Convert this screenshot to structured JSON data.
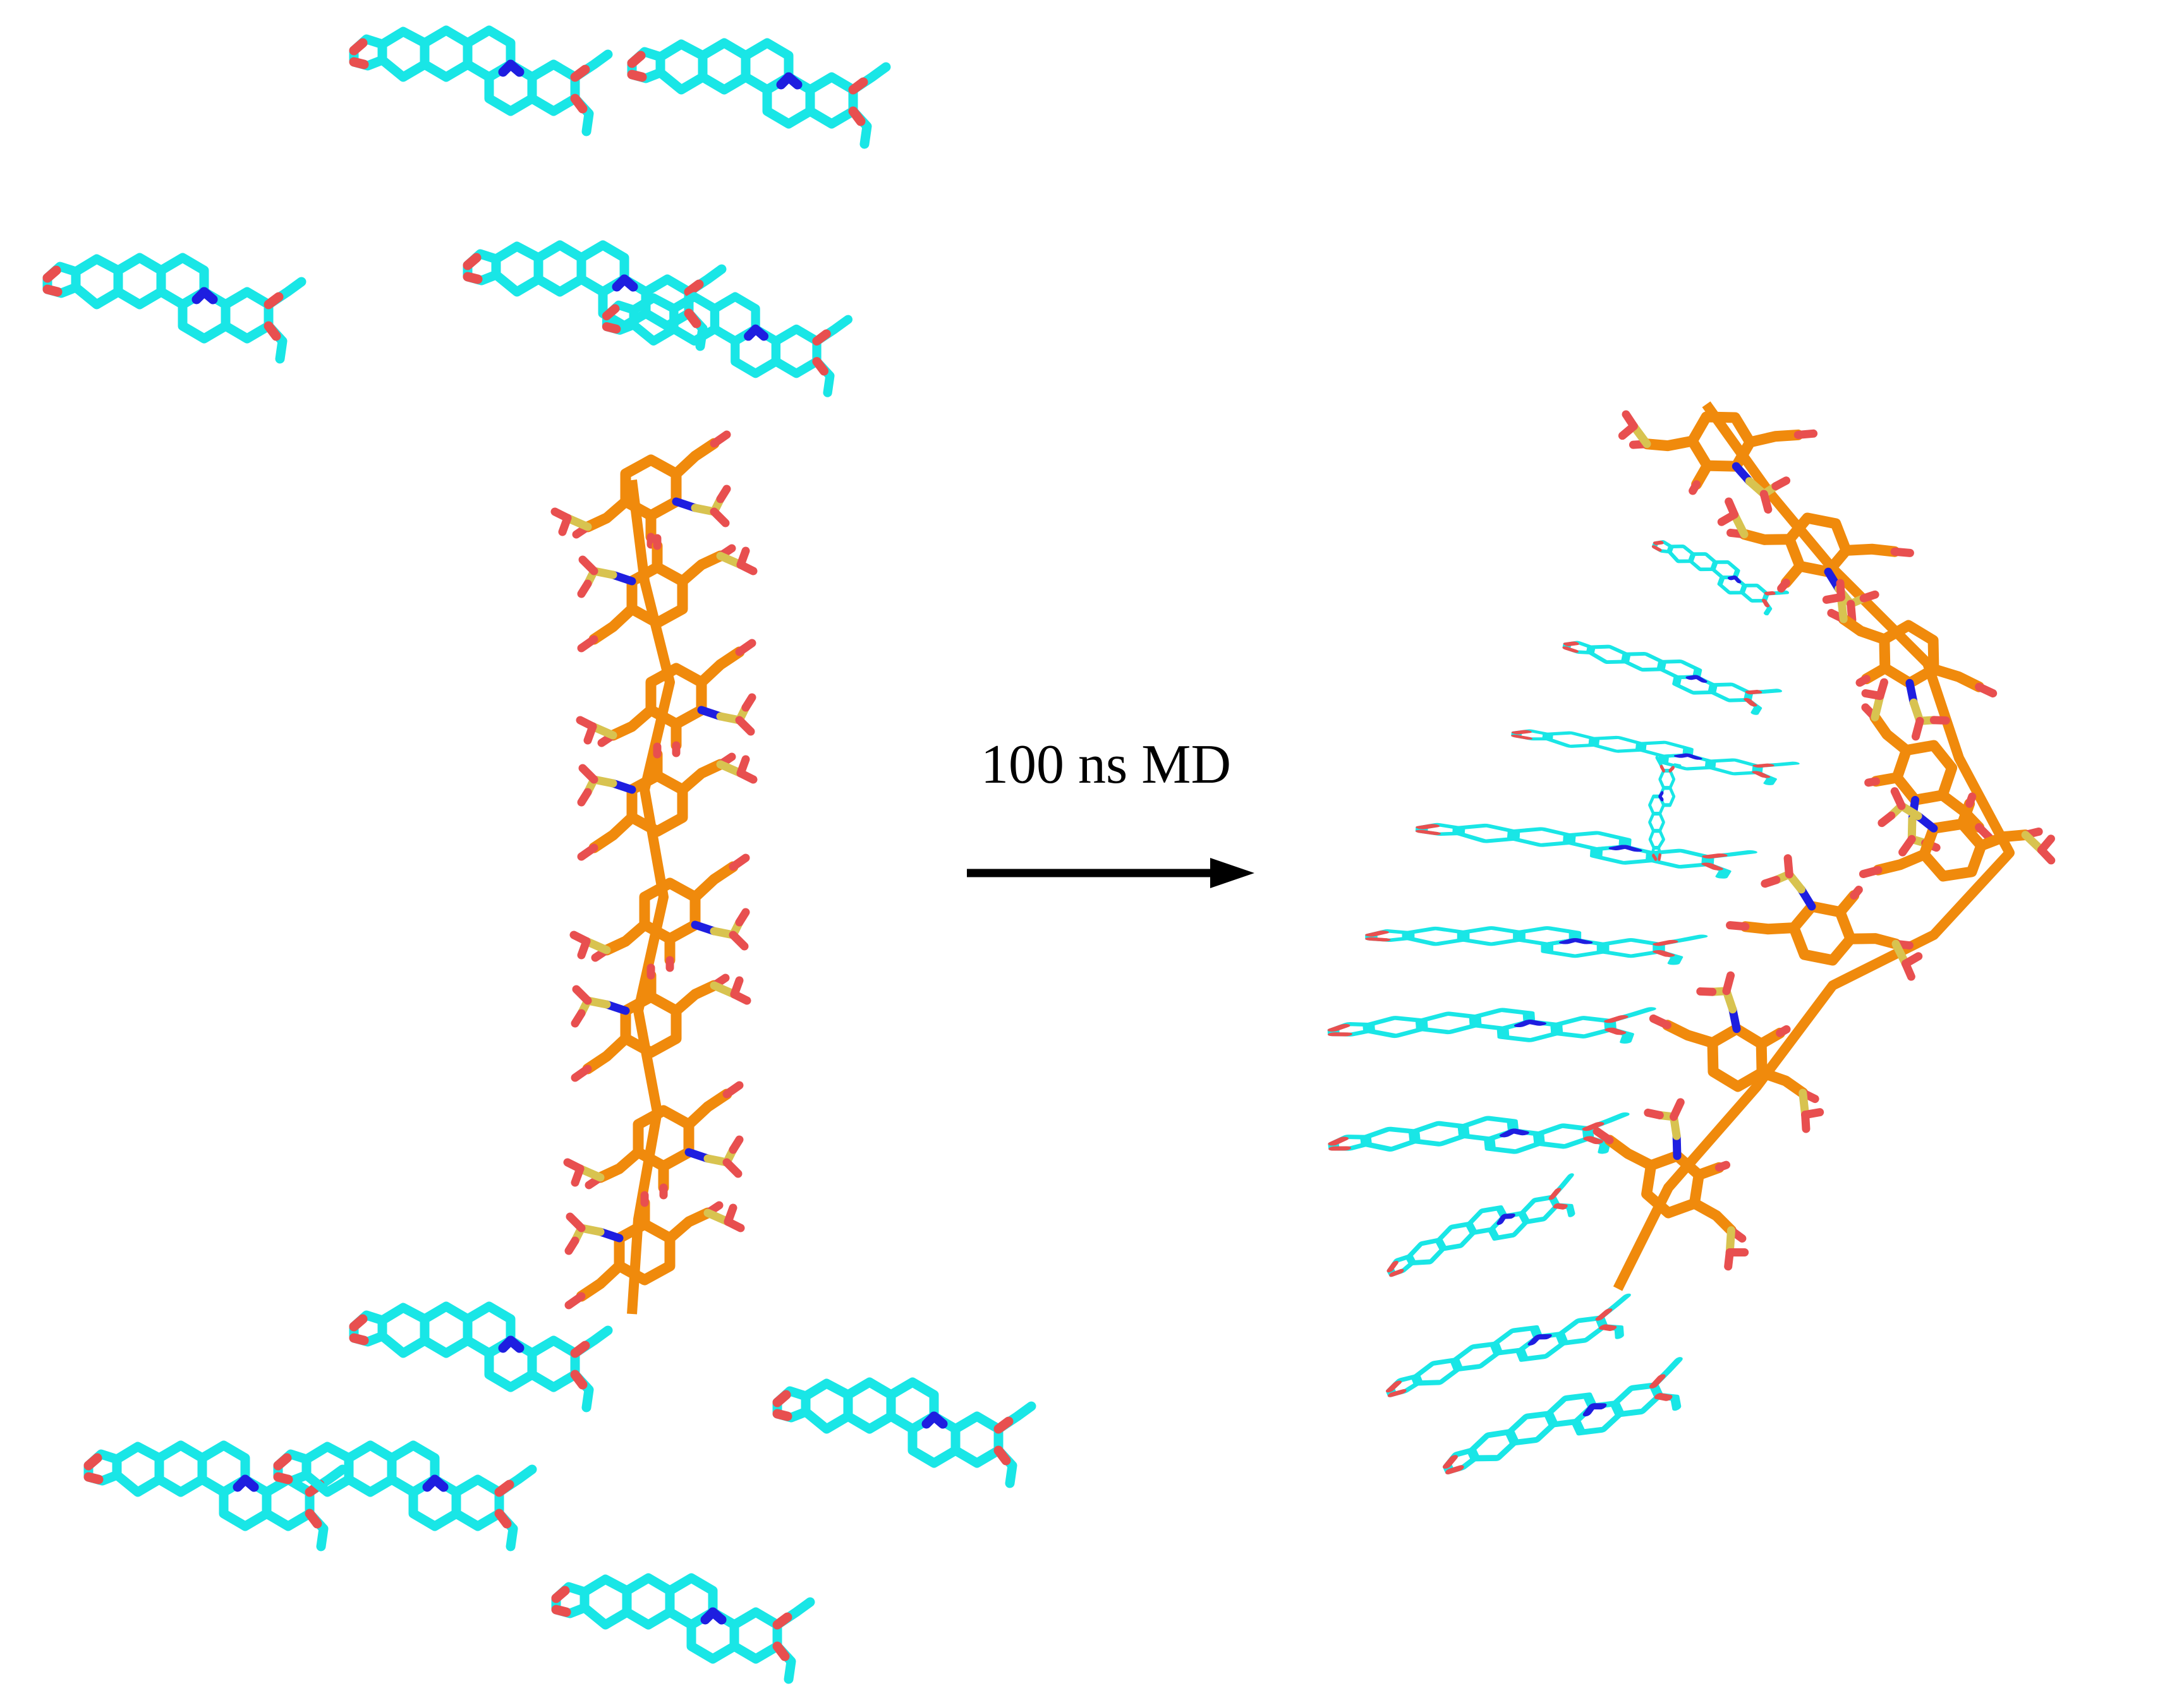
{
  "process_label": "100 ns MD",
  "colors": {
    "carbon_ligand": "#19E6E6",
    "carbon_chain": "#F08A0C",
    "oxygen": "#E84F4F",
    "nitrogen": "#1E1EE0",
    "sulfur": "#D8C350",
    "arrow": "#000000",
    "background": "#FFFFFF"
  },
  "panels": [
    {
      "name": "initial-state",
      "ligand_count": 11,
      "chain_residues": 8
    },
    {
      "name": "after-md-state",
      "ligand_count": 11,
      "chain_residues": 8
    }
  ]
}
